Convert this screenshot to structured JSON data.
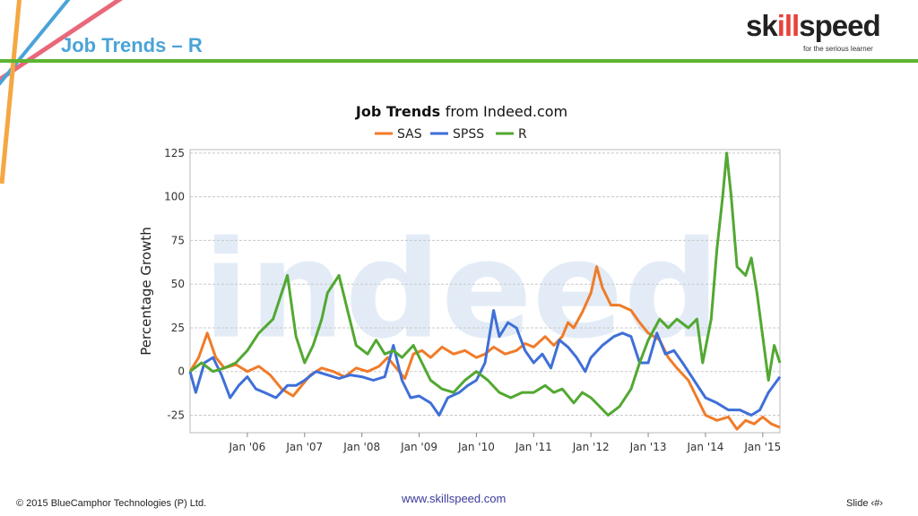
{
  "slide": {
    "title": "Job Trends – R",
    "footer_left": "© 2015 BlueCamphor Technologies (P) Ltd.",
    "footer_mid": "www.skillspeed.com",
    "footer_right": "Slide ‹#›"
  },
  "logo": {
    "text_start": "sk",
    "text_accent": "ill",
    "text_end": "speed",
    "tagline": "for the serious learner"
  },
  "colors": {
    "title": "#4aa3d8",
    "rule": "#5cb531",
    "SAS": "#f07b29",
    "SPSS": "#3f6fd8",
    "R": "#52a832"
  },
  "chart_data": {
    "type": "line",
    "title_bold": "Job Trends",
    "title_rest": "from Indeed.com",
    "ylabel": "Percentage Growth",
    "xlabel": "",
    "ylim": [
      -35,
      127
    ],
    "yticks": [
      125,
      100,
      75,
      50,
      25,
      0,
      -25
    ],
    "xlim": [
      2005.0,
      2015.3
    ],
    "xticks": [
      {
        "x": 2006,
        "label": "Jan '06"
      },
      {
        "x": 2007,
        "label": "Jan '07"
      },
      {
        "x": 2008,
        "label": "Jan '08"
      },
      {
        "x": 2009,
        "label": "Jan '09"
      },
      {
        "x": 2010,
        "label": "Jan '10"
      },
      {
        "x": 2011,
        "label": "Jan '11"
      },
      {
        "x": 2012,
        "label": "Jan '12"
      },
      {
        "x": 2013,
        "label": "Jan '13"
      },
      {
        "x": 2014,
        "label": "Jan '14"
      },
      {
        "x": 2015,
        "label": "Jan '15"
      }
    ],
    "grid": true,
    "legend": "top",
    "watermark": "indeed",
    "series": [
      {
        "name": "SAS",
        "color": "#f07b29",
        "points": [
          [
            2005.0,
            0
          ],
          [
            2005.15,
            8
          ],
          [
            2005.3,
            22
          ],
          [
            2005.45,
            8
          ],
          [
            2005.6,
            2
          ],
          [
            2005.8,
            4
          ],
          [
            2006.0,
            0
          ],
          [
            2006.2,
            3
          ],
          [
            2006.4,
            -2
          ],
          [
            2006.6,
            -10
          ],
          [
            2006.8,
            -14
          ],
          [
            2006.95,
            -8
          ],
          [
            2007.1,
            -2
          ],
          [
            2007.3,
            2
          ],
          [
            2007.5,
            0
          ],
          [
            2007.7,
            -3
          ],
          [
            2007.9,
            2
          ],
          [
            2008.1,
            0
          ],
          [
            2008.3,
            3
          ],
          [
            2008.45,
            8
          ],
          [
            2008.6,
            2
          ],
          [
            2008.75,
            -4
          ],
          [
            2008.9,
            10
          ],
          [
            2009.05,
            12
          ],
          [
            2009.2,
            8
          ],
          [
            2009.4,
            14
          ],
          [
            2009.6,
            10
          ],
          [
            2009.8,
            12
          ],
          [
            2010.0,
            8
          ],
          [
            2010.15,
            10
          ],
          [
            2010.3,
            14
          ],
          [
            2010.5,
            10
          ],
          [
            2010.7,
            12
          ],
          [
            2010.85,
            16
          ],
          [
            2011.0,
            14
          ],
          [
            2011.2,
            20
          ],
          [
            2011.35,
            15
          ],
          [
            2011.5,
            20
          ],
          [
            2011.6,
            28
          ],
          [
            2011.7,
            25
          ],
          [
            2011.85,
            34
          ],
          [
            2012.0,
            45
          ],
          [
            2012.1,
            60
          ],
          [
            2012.2,
            48
          ],
          [
            2012.35,
            38
          ],
          [
            2012.5,
            38
          ],
          [
            2012.7,
            35
          ],
          [
            2012.85,
            28
          ],
          [
            2013.0,
            22
          ],
          [
            2013.2,
            18
          ],
          [
            2013.35,
            8
          ],
          [
            2013.5,
            2
          ],
          [
            2013.7,
            -5
          ],
          [
            2013.85,
            -15
          ],
          [
            2014.0,
            -25
          ],
          [
            2014.2,
            -28
          ],
          [
            2014.4,
            -26
          ],
          [
            2014.55,
            -33
          ],
          [
            2014.7,
            -28
          ],
          [
            2014.85,
            -30
          ],
          [
            2015.0,
            -26
          ],
          [
            2015.15,
            -30
          ],
          [
            2015.3,
            -32
          ]
        ]
      },
      {
        "name": "SPSS",
        "color": "#3f6fd8",
        "points": [
          [
            2005.0,
            0
          ],
          [
            2005.1,
            -12
          ],
          [
            2005.25,
            5
          ],
          [
            2005.4,
            8
          ],
          [
            2005.55,
            -2
          ],
          [
            2005.7,
            -15
          ],
          [
            2005.85,
            -8
          ],
          [
            2006.0,
            -3
          ],
          [
            2006.15,
            -10
          ],
          [
            2006.3,
            -12
          ],
          [
            2006.5,
            -15
          ],
          [
            2006.7,
            -8
          ],
          [
            2006.85,
            -8
          ],
          [
            2007.0,
            -5
          ],
          [
            2007.2,
            0
          ],
          [
            2007.4,
            -2
          ],
          [
            2007.6,
            -4
          ],
          [
            2007.8,
            -2
          ],
          [
            2008.0,
            -3
          ],
          [
            2008.2,
            -5
          ],
          [
            2008.4,
            -3
          ],
          [
            2008.55,
            15
          ],
          [
            2008.7,
            -5
          ],
          [
            2008.85,
            -15
          ],
          [
            2009.0,
            -14
          ],
          [
            2009.2,
            -18
          ],
          [
            2009.35,
            -25
          ],
          [
            2009.5,
            -15
          ],
          [
            2009.7,
            -12
          ],
          [
            2009.85,
            -8
          ],
          [
            2010.0,
            -5
          ],
          [
            2010.15,
            5
          ],
          [
            2010.3,
            35
          ],
          [
            2010.4,
            20
          ],
          [
            2010.55,
            28
          ],
          [
            2010.7,
            25
          ],
          [
            2010.85,
            12
          ],
          [
            2011.0,
            5
          ],
          [
            2011.15,
            10
          ],
          [
            2011.3,
            2
          ],
          [
            2011.45,
            18
          ],
          [
            2011.6,
            14
          ],
          [
            2011.75,
            8
          ],
          [
            2011.9,
            0
          ],
          [
            2012.0,
            8
          ],
          [
            2012.2,
            15
          ],
          [
            2012.4,
            20
          ],
          [
            2012.55,
            22
          ],
          [
            2012.7,
            20
          ],
          [
            2012.85,
            5
          ],
          [
            2013.0,
            5
          ],
          [
            2013.15,
            22
          ],
          [
            2013.3,
            10
          ],
          [
            2013.45,
            12
          ],
          [
            2013.6,
            5
          ],
          [
            2013.8,
            -5
          ],
          [
            2014.0,
            -15
          ],
          [
            2014.2,
            -18
          ],
          [
            2014.4,
            -22
          ],
          [
            2014.6,
            -22
          ],
          [
            2014.8,
            -25
          ],
          [
            2014.95,
            -22
          ],
          [
            2015.1,
            -12
          ],
          [
            2015.3,
            -3
          ]
        ]
      },
      {
        "name": "R",
        "color": "#52a832",
        "points": [
          [
            2005.0,
            0
          ],
          [
            2005.2,
            5
          ],
          [
            2005.4,
            0
          ],
          [
            2005.6,
            2
          ],
          [
            2005.8,
            5
          ],
          [
            2006.0,
            12
          ],
          [
            2006.2,
            22
          ],
          [
            2006.45,
            30
          ],
          [
            2006.6,
            45
          ],
          [
            2006.7,
            55
          ],
          [
            2006.85,
            20
          ],
          [
            2007.0,
            5
          ],
          [
            2007.15,
            15
          ],
          [
            2007.3,
            30
          ],
          [
            2007.4,
            45
          ],
          [
            2007.5,
            50
          ],
          [
            2007.6,
            55
          ],
          [
            2007.75,
            35
          ],
          [
            2007.9,
            15
          ],
          [
            2008.1,
            10
          ],
          [
            2008.25,
            18
          ],
          [
            2008.4,
            10
          ],
          [
            2008.55,
            12
          ],
          [
            2008.7,
            8
          ],
          [
            2008.9,
            15
          ],
          [
            2009.05,
            5
          ],
          [
            2009.2,
            -5
          ],
          [
            2009.4,
            -10
          ],
          [
            2009.6,
            -12
          ],
          [
            2009.8,
            -5
          ],
          [
            2010.0,
            0
          ],
          [
            2010.2,
            -5
          ],
          [
            2010.4,
            -12
          ],
          [
            2010.6,
            -15
          ],
          [
            2010.8,
            -12
          ],
          [
            2011.0,
            -12
          ],
          [
            2011.2,
            -8
          ],
          [
            2011.35,
            -12
          ],
          [
            2011.5,
            -10
          ],
          [
            2011.7,
            -18
          ],
          [
            2011.85,
            -12
          ],
          [
            2012.0,
            -15
          ],
          [
            2012.15,
            -20
          ],
          [
            2012.3,
            -25
          ],
          [
            2012.5,
            -20
          ],
          [
            2012.7,
            -10
          ],
          [
            2012.85,
            5
          ],
          [
            2013.0,
            18
          ],
          [
            2013.2,
            30
          ],
          [
            2013.35,
            25
          ],
          [
            2013.5,
            30
          ],
          [
            2013.7,
            25
          ],
          [
            2013.85,
            30
          ],
          [
            2013.95,
            5
          ],
          [
            2014.1,
            30
          ],
          [
            2014.2,
            70
          ],
          [
            2014.3,
            100
          ],
          [
            2014.37,
            125
          ],
          [
            2014.45,
            100
          ],
          [
            2014.55,
            60
          ],
          [
            2014.7,
            55
          ],
          [
            2014.8,
            65
          ],
          [
            2014.9,
            45
          ],
          [
            2015.0,
            20
          ],
          [
            2015.1,
            -5
          ],
          [
            2015.2,
            15
          ],
          [
            2015.3,
            5
          ]
        ]
      }
    ]
  }
}
